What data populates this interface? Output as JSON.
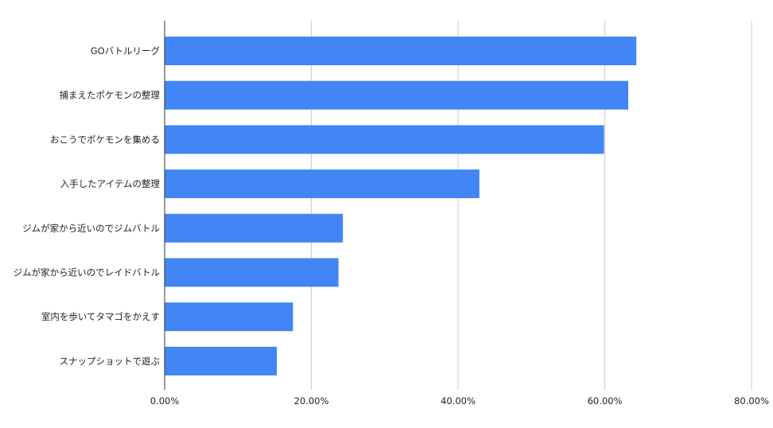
{
  "chart_data": {
    "type": "bar",
    "orientation": "horizontal",
    "categories": [
      "GOバトルリーグ",
      "捕まえたポケモンの整理",
      "おこうでポケモンを集める",
      "入手したアイテムの整理",
      "ジムが家から近いのでジムバトル",
      "ジムが家から近いのでレイドバトル",
      "室内を歩いてタマゴをかえす",
      "スナップショットで遊ぶ"
    ],
    "values": [
      0.643,
      0.632,
      0.599,
      0.429,
      0.243,
      0.237,
      0.175,
      0.153
    ],
    "xlim": [
      0,
      0.8
    ],
    "xticks": [
      {
        "value": 0.0,
        "label": "0.00%"
      },
      {
        "value": 0.2,
        "label": "20.00%"
      },
      {
        "value": 0.4,
        "label": "40.00%"
      },
      {
        "value": 0.6,
        "label": "60.00%"
      },
      {
        "value": 0.8,
        "label": "80.00%"
      }
    ],
    "title": "",
    "xlabel": "",
    "ylabel": "",
    "grid": "vertical",
    "legend": "none",
    "bar_color": "#4285f4",
    "grid_color": "#cccccc",
    "axis_color": "#333333"
  }
}
